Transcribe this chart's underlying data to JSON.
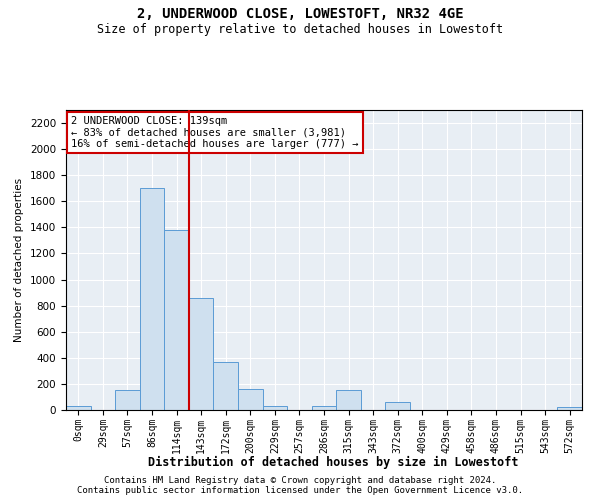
{
  "title": "2, UNDERWOOD CLOSE, LOWESTOFT, NR32 4GE",
  "subtitle": "Size of property relative to detached houses in Lowestoft",
  "xlabel": "Distribution of detached houses by size in Lowestoft",
  "ylabel": "Number of detached properties",
  "footnote1": "Contains HM Land Registry data © Crown copyright and database right 2024.",
  "footnote2": "Contains public sector information licensed under the Open Government Licence v3.0.",
  "annotation_title": "2 UNDERWOOD CLOSE: 139sqm",
  "annotation_line1": "← 83% of detached houses are smaller (3,981)",
  "annotation_line2": "16% of semi-detached houses are larger (777) →",
  "bar_color": "#cfe0ef",
  "bar_edgecolor": "#5b9bd5",
  "marker_color": "#cc0000",
  "annotation_edgecolor": "#cc0000",
  "plot_bg_color": "#e8eef4",
  "categories": [
    "0sqm",
    "29sqm",
    "57sqm",
    "86sqm",
    "114sqm",
    "143sqm",
    "172sqm",
    "200sqm",
    "229sqm",
    "257sqm",
    "286sqm",
    "315sqm",
    "343sqm",
    "372sqm",
    "400sqm",
    "429sqm",
    "458sqm",
    "486sqm",
    "515sqm",
    "543sqm",
    "572sqm"
  ],
  "values": [
    30,
    0,
    150,
    1700,
    1380,
    860,
    370,
    160,
    30,
    0,
    30,
    150,
    0,
    60,
    0,
    0,
    0,
    0,
    0,
    0,
    20
  ],
  "marker_bin_index": 5,
  "ylim": [
    0,
    2300
  ],
  "yticks": [
    0,
    200,
    400,
    600,
    800,
    1000,
    1200,
    1400,
    1600,
    1800,
    2000,
    2200
  ]
}
